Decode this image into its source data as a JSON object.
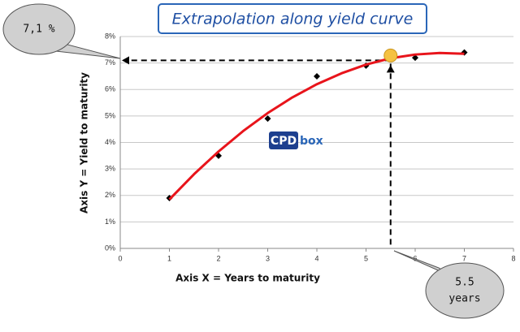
{
  "chart_data": {
    "type": "scatter",
    "title": "Extrapolation along yield curve",
    "x_label": "Axis X = Years to maturity",
    "y_label": "Axis Y = Yield to maturity",
    "xlim": [
      0,
      8
    ],
    "xticks": [
      0,
      1,
      2,
      3,
      4,
      5,
      6,
      7,
      8
    ],
    "ylim": [
      0,
      8
    ],
    "yticks": [
      {
        "value": 0,
        "label": "0%"
      },
      {
        "value": 1,
        "label": "1%"
      },
      {
        "value": 2,
        "label": "2%"
      },
      {
        "value": 3,
        "label": "3%"
      },
      {
        "value": 4,
        "label": "4%"
      },
      {
        "value": 5,
        "label": "5%"
      },
      {
        "value": 6,
        "label": "6%"
      },
      {
        "value": 7,
        "label": "7%"
      },
      {
        "value": 8,
        "label": "8%"
      }
    ],
    "grid": true,
    "series": [
      {
        "mode": "markers",
        "color": "#000000",
        "x": [
          1,
          2,
          3,
          4,
          5,
          6,
          7
        ],
        "values": [
          1.9,
          3.5,
          4.9,
          6.5,
          6.9,
          7.2,
          7.4
        ]
      },
      {
        "mode": "line",
        "color": "#e8141b",
        "x": [
          1,
          1.5,
          2,
          2.5,
          3,
          3.5,
          4,
          4.5,
          5,
          5.5,
          6,
          6.5,
          7
        ],
        "values": [
          1.85,
          2.8,
          3.66,
          4.43,
          5.11,
          5.7,
          6.2,
          6.61,
          6.94,
          7.18,
          7.32,
          7.38,
          7.35
        ]
      }
    ],
    "highlight": {
      "x": 5.5,
      "y": 7.1,
      "color": "#f5c242"
    },
    "callouts": {
      "y_text": "7,1 %",
      "x_lines": [
        "5.5",
        "years"
      ]
    },
    "logo": {
      "left": "CPD",
      "right": "box"
    }
  }
}
